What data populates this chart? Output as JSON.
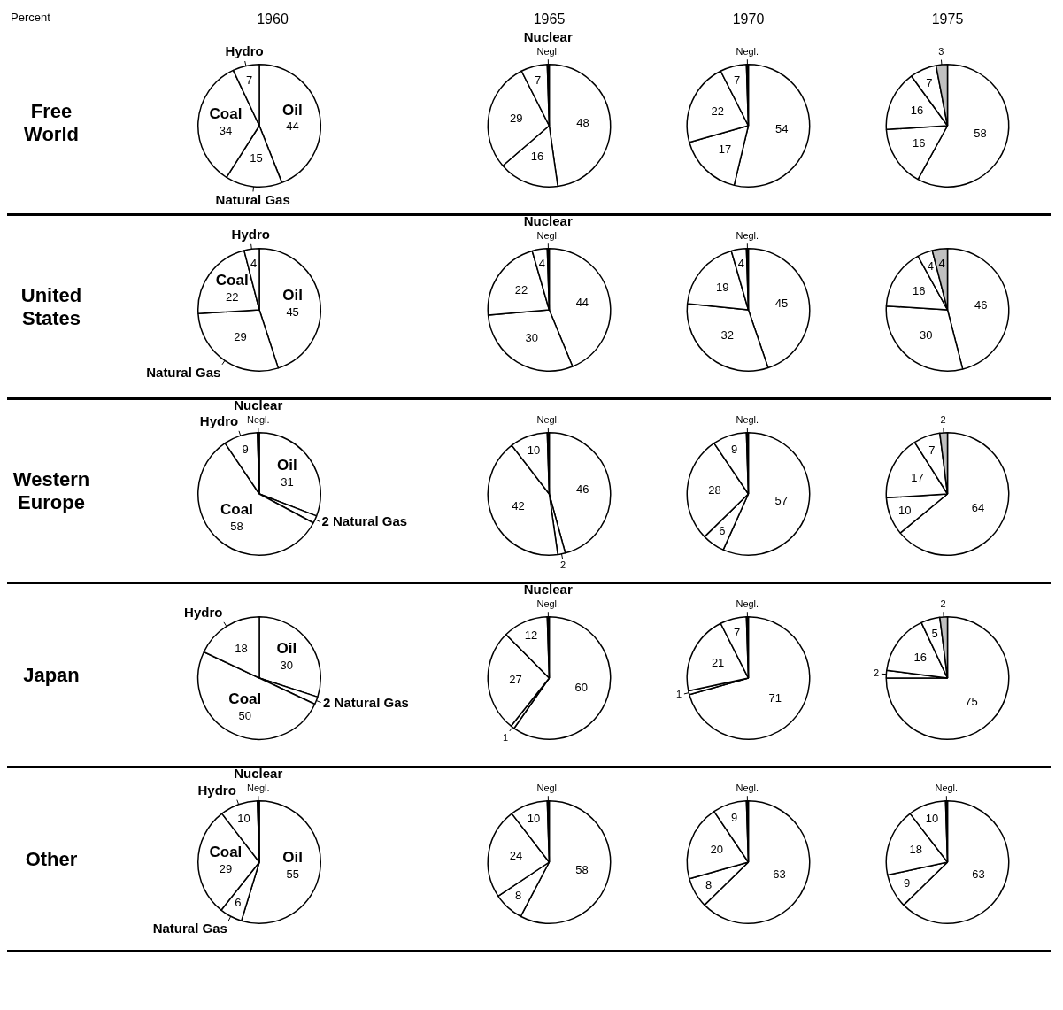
{
  "chart_data": [
    {
      "type": "pie",
      "title": "1960",
      "ylabel": "Free World",
      "annotations": [
        "Percent"
      ],
      "categories": [
        "Oil",
        "Natural Gas",
        "Coal",
        "Hydro"
      ],
      "values": [
        44,
        15,
        34,
        7
      ],
      "colors": [
        "#ffffff",
        "#ffffff",
        "#ffffff",
        "#ffffff"
      ],
      "value_labels": [
        "44",
        "15",
        "34",
        "7"
      ]
    },
    {
      "type": "pie",
      "title": "1965",
      "categories": [
        null,
        null,
        null,
        null,
        "Nuclear"
      ],
      "values": [
        48,
        16,
        29,
        7,
        0.5
      ],
      "colors": [
        "#ffffff",
        "#ffffff",
        "#ffffff",
        "#ffffff",
        "#000000"
      ],
      "value_labels": [
        "48",
        "16",
        "29",
        "7",
        "Negl."
      ]
    },
    {
      "type": "pie",
      "title": "1970",
      "categories": [
        null,
        null,
        null,
        null,
        null
      ],
      "values": [
        54,
        17,
        22,
        7,
        0.5
      ],
      "colors": [
        "#ffffff",
        "#ffffff",
        "#ffffff",
        "#ffffff",
        "#000000"
      ],
      "value_labels": [
        "54",
        "17",
        "22",
        "7",
        "Negl."
      ]
    },
    {
      "type": "pie",
      "title": "1975",
      "categories": [
        null,
        null,
        null,
        null,
        null
      ],
      "values": [
        58,
        16,
        16,
        7,
        3
      ],
      "colors": [
        "#ffffff",
        "#ffffff",
        "#ffffff",
        "#ffffff",
        "#c0c0c0"
      ],
      "value_labels": [
        "58",
        "16",
        "16",
        "7",
        "3"
      ]
    },
    {
      "type": "pie",
      "ylabel": "United States",
      "categories": [
        "Oil",
        "Natural Gas",
        "Coal",
        "Hydro"
      ],
      "values": [
        45,
        29,
        22,
        4
      ],
      "colors": [
        "#ffffff",
        "#ffffff",
        "#ffffff",
        "#ffffff"
      ],
      "value_labels": [
        "45",
        "29",
        "22",
        "4"
      ]
    },
    {
      "type": "pie",
      "categories": [
        null,
        null,
        null,
        null,
        "Nuclear"
      ],
      "values": [
        44,
        30,
        22,
        4,
        0.5
      ],
      "colors": [
        "#ffffff",
        "#ffffff",
        "#ffffff",
        "#ffffff",
        "#000000"
      ],
      "value_labels": [
        "44",
        "30",
        "22",
        "4",
        "Negl."
      ]
    },
    {
      "type": "pie",
      "categories": [
        null,
        null,
        null,
        null,
        null
      ],
      "values": [
        45,
        32,
        19,
        4,
        0.5
      ],
      "colors": [
        "#ffffff",
        "#ffffff",
        "#ffffff",
        "#ffffff",
        "#000000"
      ],
      "value_labels": [
        "45",
        "32",
        "19",
        "4",
        "Negl."
      ]
    },
    {
      "type": "pie",
      "categories": [
        null,
        null,
        null,
        null,
        null
      ],
      "values": [
        46,
        30,
        16,
        4,
        4
      ],
      "colors": [
        "#ffffff",
        "#ffffff",
        "#ffffff",
        "#ffffff",
        "#c0c0c0"
      ],
      "value_labels": [
        "46",
        "30",
        "16",
        "4",
        "4"
      ]
    },
    {
      "type": "pie",
      "ylabel": "Western Europe",
      "categories": [
        "Oil",
        "Natural Gas",
        "Coal",
        "Hydro",
        "Nuclear"
      ],
      "values": [
        31,
        2,
        58,
        9,
        0.5
      ],
      "colors": [
        "#ffffff",
        "#ffffff",
        "#ffffff",
        "#ffffff",
        "#000000"
      ],
      "value_labels": [
        "31",
        "2",
        "58",
        "9",
        "Negl."
      ]
    },
    {
      "type": "pie",
      "categories": [
        null,
        null,
        null,
        null,
        null
      ],
      "values": [
        46,
        2,
        42,
        10,
        0.5
      ],
      "colors": [
        "#ffffff",
        "#ffffff",
        "#ffffff",
        "#ffffff",
        "#000000"
      ],
      "value_labels": [
        "46",
        "2",
        "42",
        "10",
        "Negl."
      ]
    },
    {
      "type": "pie",
      "categories": [
        null,
        null,
        null,
        null,
        null
      ],
      "values": [
        57,
        6,
        28,
        9,
        0.5
      ],
      "colors": [
        "#ffffff",
        "#ffffff",
        "#ffffff",
        "#ffffff",
        "#000000"
      ],
      "value_labels": [
        "57",
        "6",
        "28",
        "9",
        "Negl."
      ]
    },
    {
      "type": "pie",
      "categories": [
        null,
        null,
        null,
        null,
        null
      ],
      "values": [
        64,
        10,
        17,
        7,
        2
      ],
      "colors": [
        "#ffffff",
        "#ffffff",
        "#ffffff",
        "#ffffff",
        "#c0c0c0"
      ],
      "value_labels": [
        "64",
        "10",
        "17",
        "7",
        "2"
      ]
    },
    {
      "type": "pie",
      "ylabel": "Japan",
      "categories": [
        "Oil",
        "Natural Gas",
        "Coal",
        "Hydro"
      ],
      "values": [
        30,
        2,
        50,
        18
      ],
      "colors": [
        "#ffffff",
        "#ffffff",
        "#ffffff",
        "#ffffff"
      ],
      "value_labels": [
        "30",
        "2",
        "50",
        "18"
      ]
    },
    {
      "type": "pie",
      "categories": [
        null,
        null,
        null,
        null,
        "Nuclear"
      ],
      "values": [
        60,
        1,
        27,
        12,
        0.5
      ],
      "colors": [
        "#ffffff",
        "#ffffff",
        "#ffffff",
        "#ffffff",
        "#000000"
      ],
      "value_labels": [
        "60",
        "1",
        "27",
        "12",
        "Negl."
      ]
    },
    {
      "type": "pie",
      "categories": [
        null,
        null,
        null,
        null,
        null
      ],
      "values": [
        71,
        1,
        21,
        7,
        0.5
      ],
      "colors": [
        "#ffffff",
        "#ffffff",
        "#ffffff",
        "#ffffff",
        "#000000"
      ],
      "value_labels": [
        "71",
        "1",
        "21",
        "7",
        "Negl."
      ]
    },
    {
      "type": "pie",
      "categories": [
        null,
        null,
        null,
        null,
        null
      ],
      "values": [
        75,
        2,
        16,
        5,
        2
      ],
      "colors": [
        "#ffffff",
        "#ffffff",
        "#ffffff",
        "#ffffff",
        "#c0c0c0"
      ],
      "value_labels": [
        "75",
        "2",
        "16",
        "5",
        "2"
      ]
    },
    {
      "type": "pie",
      "ylabel": "Other",
      "categories": [
        "Oil",
        "Natural Gas",
        "Coal",
        "Hydro",
        "Nuclear"
      ],
      "values": [
        55,
        6,
        29,
        10,
        0.5
      ],
      "colors": [
        "#ffffff",
        "#ffffff",
        "#ffffff",
        "#ffffff",
        "#000000"
      ],
      "value_labels": [
        "55",
        "6",
        "29",
        "10",
        "Negl."
      ]
    },
    {
      "type": "pie",
      "categories": [
        null,
        null,
        null,
        null,
        null
      ],
      "values": [
        58,
        8,
        24,
        10,
        0.5
      ],
      "colors": [
        "#ffffff",
        "#ffffff",
        "#ffffff",
        "#ffffff",
        "#000000"
      ],
      "value_labels": [
        "58",
        "8",
        "24",
        "10",
        "Negl."
      ]
    },
    {
      "type": "pie",
      "categories": [
        null,
        null,
        null,
        null,
        null
      ],
      "values": [
        63,
        8,
        20,
        9,
        0.5
      ],
      "colors": [
        "#ffffff",
        "#ffffff",
        "#ffffff",
        "#ffffff",
        "#000000"
      ],
      "value_labels": [
        "63",
        "8",
        "20",
        "9",
        "Negl."
      ]
    },
    {
      "type": "pie",
      "categories": [
        null,
        null,
        null,
        null,
        null
      ],
      "values": [
        63,
        9,
        18,
        10,
        0.5
      ],
      "colors": [
        "#ffffff",
        "#ffffff",
        "#ffffff",
        "#ffffff",
        "#000000"
      ],
      "value_labels": [
        "63",
        "9",
        "18",
        "10",
        "Negl."
      ]
    }
  ]
}
